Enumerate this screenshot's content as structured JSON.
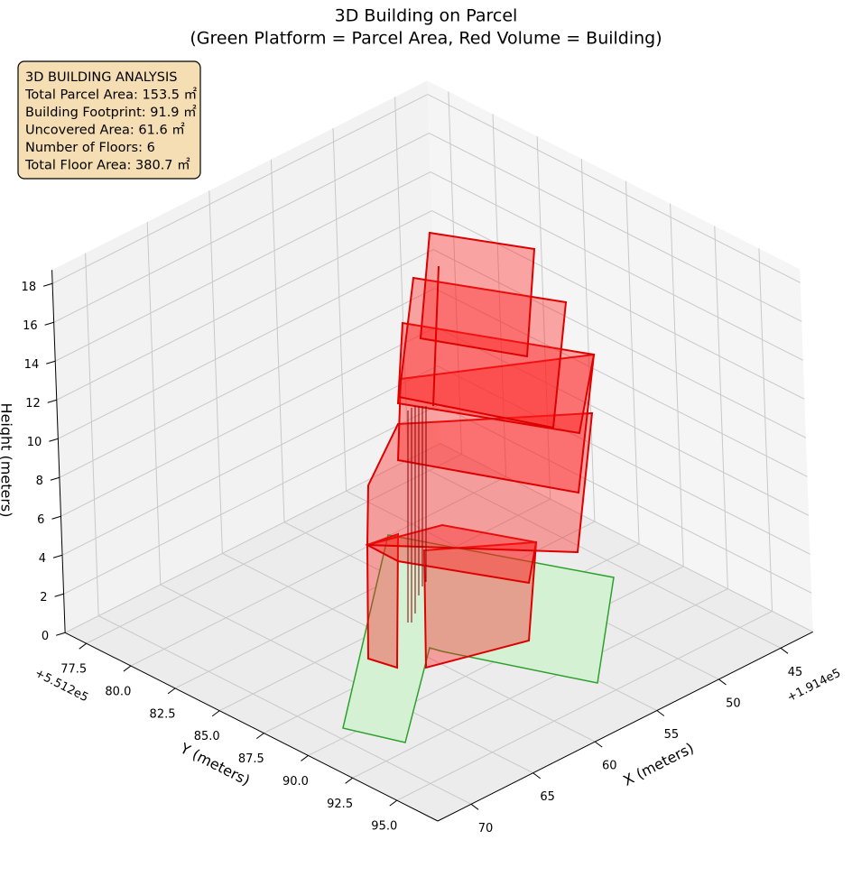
{
  "chart_data": {
    "type": "3d",
    "title": "3D Building on Parcel",
    "subtitle": "(Green Platform = Parcel Area, Red Volume = Building)",
    "annotation": [
      "3D BUILDING ANALYSIS",
      "Total Parcel Area: 153.5 ㎡",
      "Building Footprint: 91.9 ㎡",
      "Uncovered Area: 61.6 ㎡",
      "Number of Floors: 6",
      "Total Floor Area: 380.7 ㎡"
    ],
    "x_label": "X (meters)",
    "y_label": "Y (meters)",
    "z_label": "Height (meters)",
    "x_offset": "+1.914e5",
    "y_offset": "+5.512e5",
    "xlim": [
      42.4,
      72.7
    ],
    "xticks": [
      45,
      50,
      55,
      60,
      65,
      70
    ],
    "ylim": [
      76.3,
      97.3
    ],
    "yticks": [
      77.5,
      {
        "value": 80,
        "label": "80.0"
      },
      82.5,
      {
        "value": 85,
        "label": "85.0"
      },
      87.5,
      {
        "value": 90,
        "label": "90.0"
      },
      92.5,
      {
        "value": 95,
        "label": "95.0"
      }
    ],
    "zlim": [
      0,
      18.7
    ],
    "zticks": [
      0,
      2,
      4,
      6,
      8,
      10,
      12,
      14,
      16,
      18
    ],
    "grid": true
  }
}
